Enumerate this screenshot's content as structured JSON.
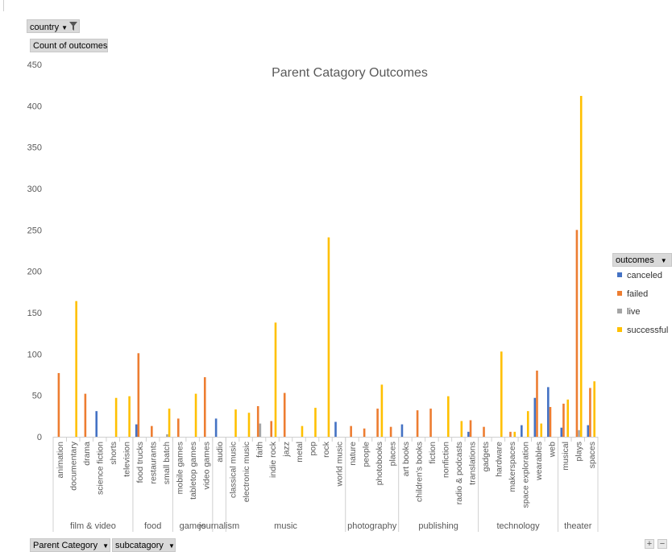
{
  "filters": {
    "country_label": "country",
    "value_field_label": "Count of outcomes",
    "parent_category_label": "Parent Category",
    "subcategory_label": "subcatagory",
    "outcomes_label": "outcomes"
  },
  "zoom_controls": {
    "plus": "+",
    "minus": "−"
  },
  "colors": {
    "canceled": "#4472c4",
    "failed": "#ed7d31",
    "live": "#a5a5a5",
    "successful": "#ffc000"
  },
  "chart_data": {
    "type": "bar",
    "title": "Parent Catagory Outcomes",
    "xlabel": "",
    "ylabel": "",
    "ylim": [
      0,
      450
    ],
    "yticks": [
      0,
      50,
      100,
      150,
      200,
      250,
      300,
      350,
      400,
      450
    ],
    "legend_position": "right",
    "grid": false,
    "series_names": [
      "canceled",
      "failed",
      "live",
      "successful"
    ],
    "groups": [
      {
        "name": "film & video",
        "categories": [
          {
            "label": "animation",
            "values": [
              0,
              77,
              0,
              0
            ]
          },
          {
            "label": "documentary",
            "values": [
              0,
              0,
              0,
              164
            ]
          },
          {
            "label": "drama",
            "values": [
              0,
              52,
              0,
              0
            ]
          },
          {
            "label": "science fiction",
            "values": [
              31,
              0,
              0,
              0
            ]
          },
          {
            "label": "shorts",
            "values": [
              0,
              0,
              0,
              47
            ]
          },
          {
            "label": "television",
            "values": [
              0,
              0,
              0,
              49
            ]
          }
        ]
      },
      {
        "name": "food",
        "categories": [
          {
            "label": "food trucks",
            "values": [
              15,
              101,
              0,
              0
            ]
          },
          {
            "label": "restaurants",
            "values": [
              0,
              13,
              0,
              0
            ]
          },
          {
            "label": "small batch",
            "values": [
              0,
              0,
              3,
              34
            ]
          }
        ]
      },
      {
        "name": "games",
        "categories": [
          {
            "label": "mobile games",
            "values": [
              0,
              22,
              0,
              0
            ]
          },
          {
            "label": "tabletop games",
            "values": [
              0,
              0,
              0,
              52
            ]
          },
          {
            "label": "video games",
            "values": [
              0,
              72,
              0,
              0
            ]
          }
        ]
      },
      {
        "name": "journalism",
        "categories": [
          {
            "label": "audio",
            "values": [
              22,
              0,
              0,
              0
            ]
          }
        ]
      },
      {
        "name": "music",
        "categories": [
          {
            "label": "classical music",
            "values": [
              0,
              0,
              0,
              33
            ]
          },
          {
            "label": "electronic music",
            "values": [
              0,
              0,
              0,
              29
            ]
          },
          {
            "label": "faith",
            "values": [
              0,
              37,
              16,
              0
            ]
          },
          {
            "label": "indie rock",
            "values": [
              0,
              19,
              0,
              138
            ]
          },
          {
            "label": "jazz",
            "values": [
              0,
              53,
              0,
              0
            ]
          },
          {
            "label": "metal",
            "values": [
              0,
              0,
              0,
              13
            ]
          },
          {
            "label": "pop",
            "values": [
              0,
              0,
              0,
              35
            ]
          },
          {
            "label": "rock",
            "values": [
              0,
              0,
              0,
              241
            ]
          },
          {
            "label": "world music",
            "values": [
              18,
              0,
              0,
              0
            ]
          }
        ]
      },
      {
        "name": "photography",
        "categories": [
          {
            "label": "nature",
            "values": [
              0,
              13,
              0,
              0
            ]
          },
          {
            "label": "people",
            "values": [
              0,
              10,
              0,
              0
            ]
          },
          {
            "label": "photobooks",
            "values": [
              0,
              34,
              0,
              63
            ]
          },
          {
            "label": "places",
            "values": [
              0,
              12,
              0,
              0
            ]
          }
        ]
      },
      {
        "name": "publishing",
        "categories": [
          {
            "label": "art books",
            "values": [
              15,
              0,
              0,
              0
            ]
          },
          {
            "label": "children's books",
            "values": [
              0,
              32,
              0,
              0
            ]
          },
          {
            "label": "fiction",
            "values": [
              0,
              34,
              0,
              0
            ]
          },
          {
            "label": "nonfiction",
            "values": [
              0,
              0,
              0,
              49
            ]
          },
          {
            "label": "radio & podcasts",
            "values": [
              0,
              0,
              0,
              19
            ]
          },
          {
            "label": "translations",
            "values": [
              6,
              20,
              0,
              0
            ]
          }
        ]
      },
      {
        "name": "technology",
        "categories": [
          {
            "label": "gadgets",
            "values": [
              0,
              12,
              0,
              0
            ]
          },
          {
            "label": "hardware",
            "values": [
              0,
              0,
              0,
              103
            ]
          },
          {
            "label": "makerspaces",
            "values": [
              0,
              6,
              0,
              6
            ]
          },
          {
            "label": "space exploration",
            "values": [
              14,
              0,
              0,
              31
            ]
          },
          {
            "label": "wearables",
            "values": [
              47,
              80,
              0,
              16
            ]
          },
          {
            "label": "web",
            "values": [
              60,
              36,
              0,
              0
            ]
          }
        ]
      },
      {
        "name": "theater",
        "categories": [
          {
            "label": "musical",
            "values": [
              11,
              40,
              0,
              45
            ]
          },
          {
            "label": "plays",
            "values": [
              0,
              250,
              8,
              412
            ]
          },
          {
            "label": "spaces",
            "values": [
              14,
              59,
              0,
              67
            ]
          }
        ]
      }
    ]
  }
}
